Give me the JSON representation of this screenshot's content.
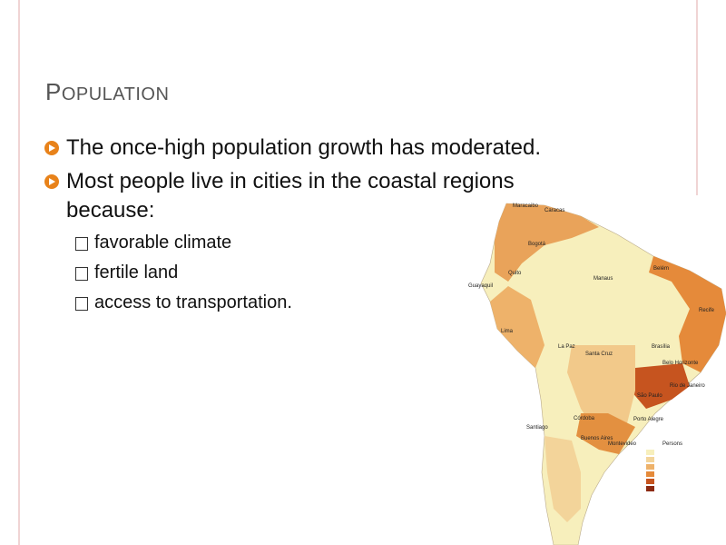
{
  "slide": {
    "title": "POPULATION",
    "bullets": [
      {
        "text": "The once-high population growth has moderated."
      },
      {
        "text": "Most people live in cities in the coastal regions because:",
        "subbullets": [
          "favorable climate",
          "fertile land",
          "access to transportation."
        ]
      }
    ],
    "map": {
      "cities": [
        "Maracaibo",
        "Caracas",
        "Bogotá",
        "Quito",
        "Guayaquil",
        "Manaus",
        "Belém",
        "Recife",
        "Lima",
        "La Paz",
        "Santa Cruz",
        "Brasília",
        "Belo Horizonte",
        "Rio de Janeiro",
        "São Paulo",
        "Córdoba",
        "Santiago",
        "Buenos Aires",
        "Montevideo",
        "Porto Alegre"
      ],
      "legend_title": "Persons"
    }
  }
}
